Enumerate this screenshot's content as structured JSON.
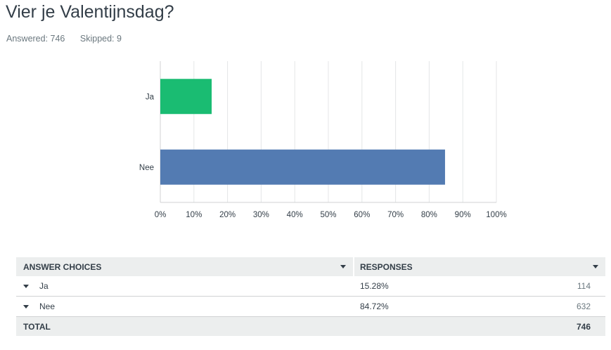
{
  "question": {
    "title": "Vier je Valentijnsdag?",
    "answered": "Answered: 746",
    "skipped": "Skipped: 9"
  },
  "chart_data": {
    "type": "bar",
    "orientation": "horizontal",
    "categories": [
      "Ja",
      "Nee"
    ],
    "values": [
      15.28,
      84.72
    ],
    "colors": [
      "#1abc72",
      "#537bb2"
    ],
    "xlim": [
      0,
      100
    ],
    "ticks": [
      "0%",
      "10%",
      "20%",
      "30%",
      "40%",
      "50%",
      "60%",
      "70%",
      "80%",
      "90%",
      "100%"
    ],
    "grid": true,
    "title": "",
    "xlabel": "",
    "ylabel": ""
  },
  "table": {
    "header_choices": "ANSWER CHOICES",
    "header_responses": "RESPONSES",
    "rows": [
      {
        "choice": "Ja",
        "percent": "15.28%",
        "count": "114"
      },
      {
        "choice": "Nee",
        "percent": "84.72%",
        "count": "632"
      }
    ],
    "total_label": "TOTAL",
    "total_count": "746"
  }
}
